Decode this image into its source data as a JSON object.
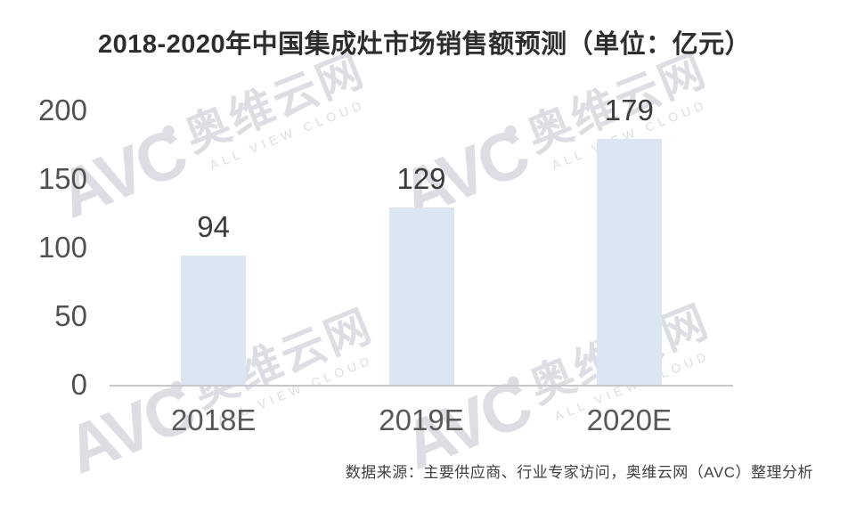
{
  "page": {
    "title": "2018-2020年中国集成灶市场销售额预测（单位：亿元）",
    "source_note": "数据来源：主要供应商、行业专家访问，奥维云网（AVC）整理分析"
  },
  "watermark": {
    "logo": "AVC",
    "cn": "奥维云网",
    "en": "ALL VIEW CLOUD"
  },
  "chart_data": {
    "type": "bar",
    "title": "2018-2020年中国集成灶市场销售额预测（单位：亿元）",
    "categories": [
      "2018E",
      "2019E",
      "2020E"
    ],
    "values": [
      94,
      129,
      179
    ],
    "unit": "亿元",
    "xlabel": "",
    "ylabel": "",
    "ylim": [
      0,
      200
    ],
    "yticks": [
      0,
      50,
      100,
      150,
      200
    ],
    "grid": false,
    "legend": false,
    "data_labels": true,
    "bar_color": "#dce6f3",
    "axis_color": "#c6c8cb",
    "label_color": "#3c3c3c"
  }
}
